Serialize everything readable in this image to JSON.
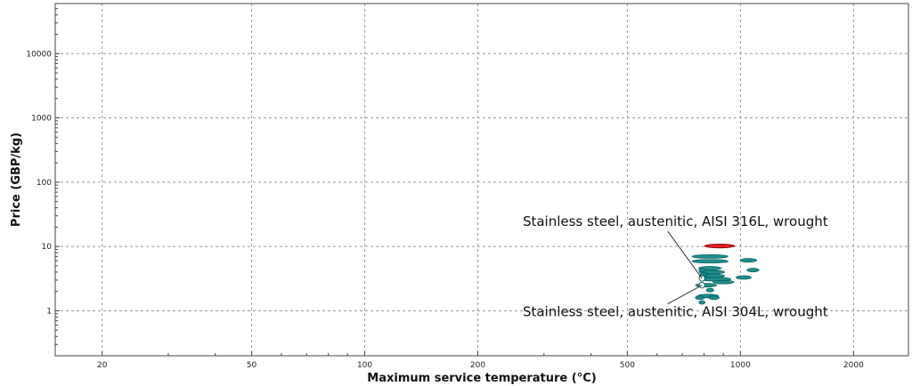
{
  "chart_data": {
    "type": "scatter",
    "xlabel": "Maximum service temperature (°C)",
    "ylabel": "Price (GBP/kg)",
    "x_scale": "log",
    "y_scale": "log",
    "xlim": [
      15,
      2800
    ],
    "ylim": [
      0.2,
      60000
    ],
    "x_ticks": [
      {
        "value": 20,
        "label": "20"
      },
      {
        "value": 50,
        "label": "50"
      },
      {
        "value": 100,
        "label": "100"
      },
      {
        "value": 200,
        "label": "200"
      },
      {
        "value": 500,
        "label": "500"
      },
      {
        "value": 1000,
        "label": "1000"
      },
      {
        "value": 2000,
        "label": "2000"
      }
    ],
    "y_ticks": [
      {
        "value": 1,
        "label": "1"
      },
      {
        "value": 10,
        "label": "10"
      },
      {
        "value": 100,
        "label": "100"
      },
      {
        "value": 1000,
        "label": "1000"
      },
      {
        "value": 10000,
        "label": "10000"
      }
    ],
    "grid": true,
    "colors": {
      "bubble": "#118a8a",
      "highlight": "#e01010",
      "bubble_edge": "#0b5a5a"
    },
    "bubbles": [
      {
        "x": 880,
        "y": 10.2,
        "rx": 0.04,
        "ry": 0.03,
        "color": "#e01010"
      },
      {
        "x": 830,
        "y": 7.0,
        "rx": 0.048,
        "ry": 0.02,
        "color": "#118a8a"
      },
      {
        "x": 830,
        "y": 5.9,
        "rx": 0.048,
        "ry": 0.022,
        "color": "#118a8a"
      },
      {
        "x": 1050,
        "y": 6.1,
        "rx": 0.022,
        "ry": 0.018,
        "color": "#118a8a"
      },
      {
        "x": 1080,
        "y": 4.3,
        "rx": 0.016,
        "ry": 0.018,
        "color": "#118a8a"
      },
      {
        "x": 1020,
        "y": 3.3,
        "rx": 0.02,
        "ry": 0.018,
        "color": "#118a8a"
      },
      {
        "x": 830,
        "y": 4.6,
        "rx": 0.03,
        "ry": 0.018,
        "color": "#118a8a"
      },
      {
        "x": 840,
        "y": 4.0,
        "rx": 0.034,
        "ry": 0.02,
        "color": "#118a8a"
      },
      {
        "x": 840,
        "y": 3.5,
        "rx": 0.034,
        "ry": 0.02,
        "color": "#118a8a"
      },
      {
        "x": 860,
        "y": 3.1,
        "rx": 0.04,
        "ry": 0.02,
        "color": "#118a8a"
      },
      {
        "x": 900,
        "y": 2.8,
        "rx": 0.028,
        "ry": 0.018,
        "color": "#118a8a"
      },
      {
        "x": 800,
        "y": 3.7,
        "rx": 0.01,
        "ry": 0.022,
        "color": "#118a8a"
      },
      {
        "x": 790,
        "y": 4.3,
        "rx": 0.008,
        "ry": 0.018,
        "color": "#118a8a"
      },
      {
        "x": 810,
        "y": 2.5,
        "rx": 0.028,
        "ry": 0.02,
        "color": "#118a8a"
      },
      {
        "x": 830,
        "y": 2.1,
        "rx": 0.01,
        "ry": 0.016,
        "color": "#118a8a"
      },
      {
        "x": 820,
        "y": 1.7,
        "rx": 0.028,
        "ry": 0.016,
        "color": "#118a8a"
      },
      {
        "x": 850,
        "y": 1.6,
        "rx": 0.014,
        "ry": 0.014,
        "color": "#118a8a"
      },
      {
        "x": 780,
        "y": 1.6,
        "rx": 0.012,
        "ry": 0.014,
        "color": "#118a8a"
      },
      {
        "x": 790,
        "y": 1.35,
        "rx": 0.008,
        "ry": 0.014,
        "color": "#118a8a"
      }
    ],
    "annotations": [
      {
        "text": "Stainless steel, austenitic, AISI 316L, wrought",
        "target_x": 790,
        "target_y": 3.2,
        "text_x": 640,
        "text_y": 21,
        "anchor": "above"
      },
      {
        "text": "Stainless steel, austenitic, AISI 304L, wrought",
        "target_x": 790,
        "target_y": 2.5,
        "text_x": 640,
        "text_y": 0.82,
        "anchor": "below"
      }
    ]
  }
}
